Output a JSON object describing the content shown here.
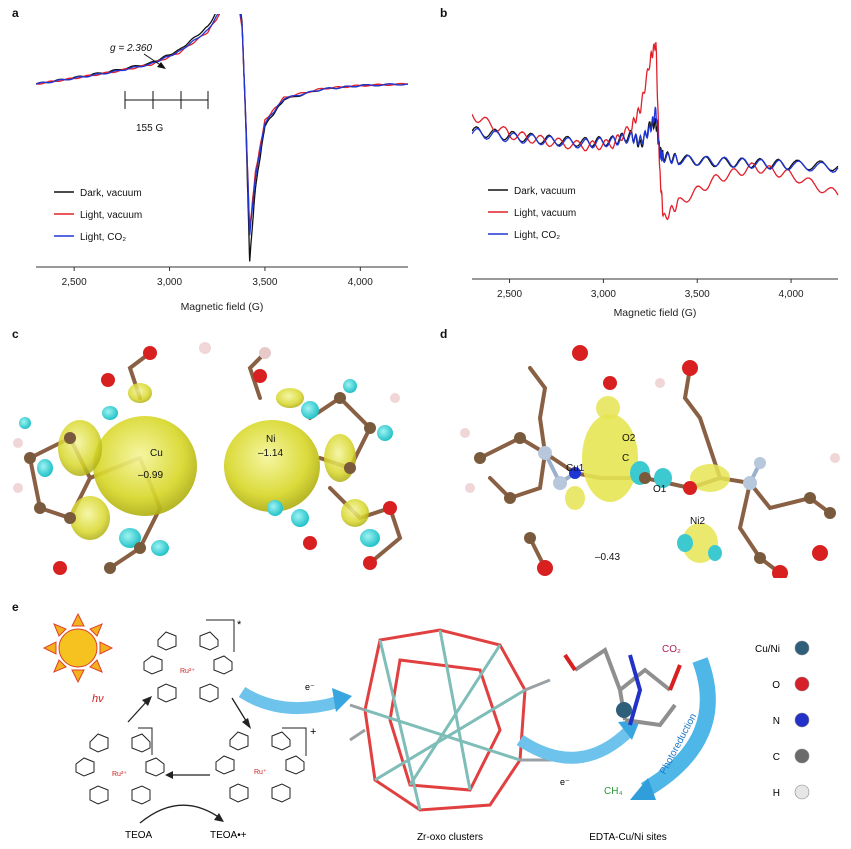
{
  "panels": {
    "a": "a",
    "b": "b",
    "c": "c",
    "d": "d",
    "e": "e"
  },
  "chart_data": [
    {
      "type": "line",
      "panel": "a",
      "xlabel": "Magnetic field (G)",
      "xlim": [
        2300,
        4250
      ],
      "xticks": [
        "2,500",
        "3,000",
        "3,500",
        "4,000"
      ],
      "xtick_values": [
        2500,
        3000,
        3500,
        4000
      ],
      "annotations": {
        "g_value": "g = 2.360",
        "spacing": "155 G"
      },
      "series": [
        {
          "name": "Dark, vacuum",
          "color": "#111111",
          "x": [
            2300,
            2500,
            2700,
            2900,
            3050,
            3200,
            3300,
            3350,
            3380,
            3400,
            3420,
            3450,
            3500,
            3600,
            3800,
            4000,
            4250
          ],
          "y": [
            0,
            1.2,
            2.5,
            4.0,
            6.5,
            11,
            17,
            19,
            12,
            -8,
            -34,
            -20,
            -8,
            -3,
            -1,
            -0.3,
            0
          ]
        },
        {
          "name": "Light, vacuum",
          "color": "#e2202a",
          "x": [
            2300,
            2500,
            2700,
            2900,
            3050,
            3200,
            3300,
            3350,
            3380,
            3400,
            3420,
            3450,
            3500,
            3600,
            3800,
            4000,
            4250
          ],
          "y": [
            0,
            1.1,
            2.3,
            3.7,
            6.0,
            10,
            15.5,
            17.5,
            11,
            -7,
            -28,
            -17,
            -7,
            -2.6,
            -0.9,
            -0.3,
            0
          ]
        },
        {
          "name": "Light, CO₂",
          "color": "#1e35d6",
          "x": [
            2300,
            2500,
            2700,
            2900,
            3050,
            3200,
            3300,
            3350,
            3380,
            3400,
            3420,
            3450,
            3500,
            3600,
            3800,
            4000,
            4250
          ],
          "y": [
            0,
            1.1,
            2.3,
            3.8,
            6.2,
            10.3,
            16,
            18,
            11.5,
            -7,
            -29,
            -18,
            -7.5,
            -2.8,
            -1,
            -0.3,
            0
          ]
        }
      ]
    },
    {
      "type": "line",
      "panel": "b",
      "xlabel": "Magnetic field (G)",
      "xlim": [
        2300,
        4250
      ],
      "xticks": [
        "2,500",
        "3,000",
        "3,500",
        "4,000"
      ],
      "xtick_values": [
        2500,
        3000,
        3500,
        4000
      ],
      "series": [
        {
          "name": "Dark, vacuum",
          "color": "#111111",
          "x": [
            2300,
            2500,
            2700,
            2900,
            3050,
            3150,
            3200,
            3250,
            3280,
            3300,
            3320,
            3400,
            3600,
            3800,
            4000,
            4250
          ],
          "y": [
            0,
            -0.6,
            -1.1,
            -1.4,
            -1.2,
            -0.5,
            -1.8,
            0.8,
            1.0,
            -2.5,
            -3.1,
            -3.5,
            -3.9,
            -4.0,
            -4.2,
            -4.4
          ]
        },
        {
          "name": "Light, vacuum",
          "color": "#e2202a",
          "x": [
            2300,
            2500,
            2700,
            2900,
            3050,
            3150,
            3200,
            3250,
            3280,
            3300,
            3320,
            3400,
            3600,
            3800,
            4000,
            4250
          ],
          "y": [
            2,
            -0.4,
            -1.3,
            -1.9,
            -1.6,
            0.5,
            3,
            9,
            11,
            -5,
            -11,
            -9,
            -6,
            -4.5,
            -5.5,
            -8
          ]
        },
        {
          "name": "Light, CO₂",
          "color": "#1e35d6",
          "x": [
            2300,
            2500,
            2700,
            2900,
            3050,
            3150,
            3200,
            3250,
            3280,
            3300,
            3320,
            3400,
            3600,
            3800,
            4000,
            4250
          ],
          "y": [
            -0.2,
            -0.8,
            -1.2,
            -1.6,
            -1.3,
            -0.8,
            -1.2,
            0.2,
            2.6,
            -2.8,
            -3.3,
            -3.6,
            -3.8,
            -4.1,
            -4.3,
            -4.6
          ]
        }
      ]
    }
  ],
  "panel_c": {
    "cu_label": "Cu",
    "cu_value": "–0.99",
    "ni_label": "Ni",
    "ni_value": "–1.14"
  },
  "panel_d": {
    "cu1": "Cu1",
    "o2": "O2",
    "c": "C",
    "o1": "O1",
    "ni2": "Ni2",
    "value": "–0.43"
  },
  "panel_e": {
    "hv": "hν",
    "star": "*",
    "plus": "+",
    "ru_excited": "Ru²⁺",
    "ru_ground": "Ru²⁺",
    "ru_reduced": "Ru⁺",
    "n": "N",
    "electron1": "e⁻",
    "electron2": "e⁻",
    "teoa": "TEOA",
    "teoa_ox": "TEOA•+",
    "co2": "CO₂",
    "ch4": "CH₄",
    "photoreduction": "Photoreduction",
    "zr_label": "Zr-oxo clusters",
    "edta_label": "EDTA-Cu/Ni sites",
    "legend": [
      {
        "label": "Cu/Ni",
        "color": "#2e5f7a"
      },
      {
        "label": "O",
        "color": "#d8202a"
      },
      {
        "label": "N",
        "color": "#2232c8"
      },
      {
        "label": "C",
        "color": "#6b6b6b"
      },
      {
        "label": "H",
        "color": "#e6e6e6"
      }
    ]
  }
}
